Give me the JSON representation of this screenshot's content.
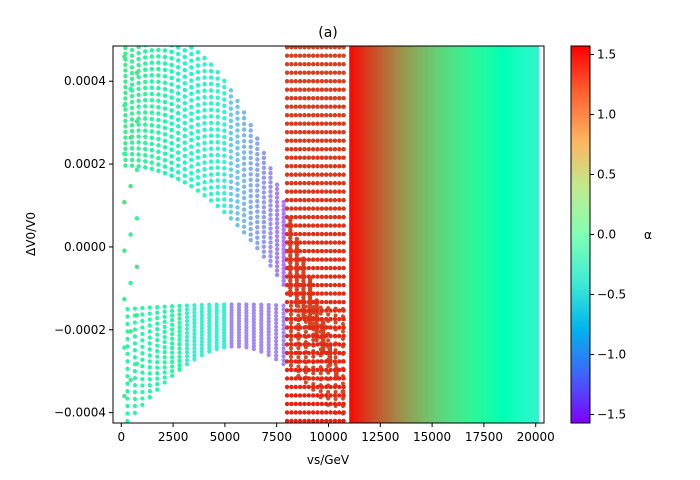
{
  "chart_data": {
    "type": "scatter",
    "title": "(a)",
    "xlabel": "vs/GeV",
    "ylabel": "ΔV0/V0",
    "xlim": [
      -400,
      20400
    ],
    "ylim": [
      -0.000425,
      0.000485
    ],
    "x_ticks": [
      0,
      2500,
      5000,
      7500,
      10000,
      12500,
      15000,
      17500,
      20000
    ],
    "x_tick_labels": [
      "0",
      "2500",
      "5000",
      "7500",
      "10000",
      "12500",
      "15000",
      "17500",
      "20000"
    ],
    "y_ticks": [
      -0.0004,
      -0.0002,
      0.0,
      0.0002,
      0.0004
    ],
    "y_tick_labels": [
      "−0.0004",
      "−0.0002",
      "0.0000",
      "0.0002",
      "0.0004"
    ],
    "colorbar": {
      "label": "α",
      "colormap": "rainbow",
      "range": [
        -1.5708,
        1.5708
      ],
      "ticks": [
        -1.5,
        -1.0,
        -0.5,
        0.0,
        0.5,
        1.0,
        1.5
      ],
      "tick_labels": [
        "−1.5",
        "−1.0",
        "−0.5",
        "0.0",
        "0.5",
        "1.0",
        "1.5"
      ]
    },
    "series": [
      {
        "description_values": "points colored by alpha",
        "regions": [
          {
            "x_range": [
              0,
              2500
            ],
            "alpha_approx": 0.3
          },
          {
            "x_range": [
              2500,
              5000
            ],
            "alpha_approx": -0.2
          },
          {
            "x_range": [
              5000,
              8000
            ],
            "alpha_approx": -0.9
          },
          {
            "x_range": [
              8000,
              11000
            ],
            "alpha_approx": 1.4
          },
          {
            "x_range": [
              11000,
              20000
            ],
            "alpha_approx": [
              1.5,
              -0.3
            ]
          }
        ]
      }
    ]
  }
}
